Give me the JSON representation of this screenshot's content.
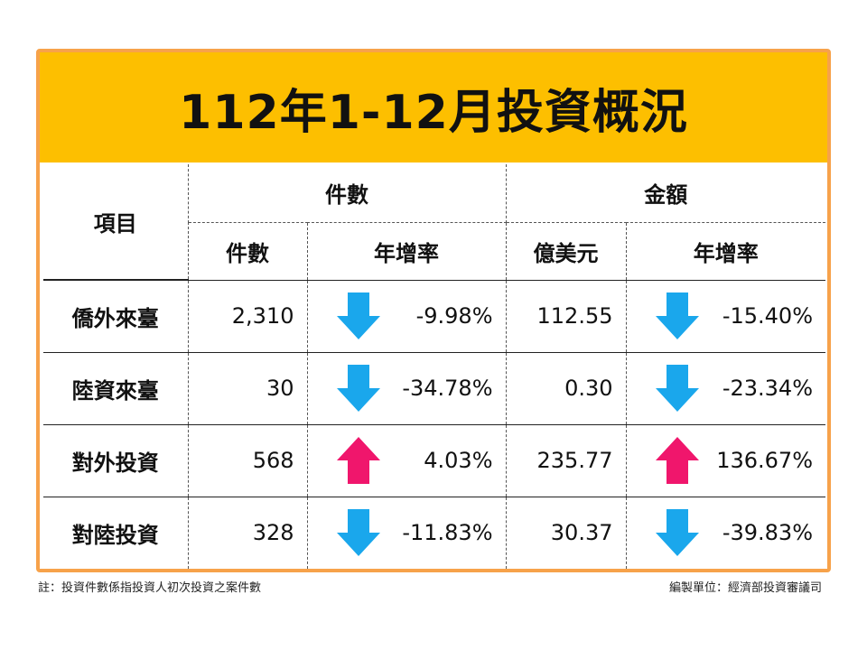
{
  "title": "112年1-12月投資概況",
  "headers": {
    "item": "項目",
    "group_count": "件數",
    "group_amount": "金額",
    "count": "件數",
    "count_rate": "年增率",
    "amount": "億美元",
    "amount_rate": "年增率"
  },
  "rows": [
    {
      "item": "僑外來臺",
      "count": "2,310",
      "count_rate": "-9.98%",
      "count_dir": "down",
      "amount": "112.55",
      "amount_rate": "-15.40%",
      "amount_dir": "down"
    },
    {
      "item": "陸資來臺",
      "count": "30",
      "count_rate": "-34.78%",
      "count_dir": "down",
      "amount": "0.30",
      "amount_rate": "-23.34%",
      "amount_dir": "down"
    },
    {
      "item": "對外投資",
      "count": "568",
      "count_rate": "4.03%",
      "count_dir": "up",
      "amount": "235.77",
      "amount_rate": "136.67%",
      "amount_dir": "up"
    },
    {
      "item": "對陸投資",
      "count": "328",
      "count_rate": "-11.83%",
      "count_dir": "down",
      "amount": "30.37",
      "amount_rate": "-39.83%",
      "amount_dir": "down"
    }
  ],
  "footnote": "註：投資件數係指投資人初次投資之案件數",
  "compiler": "編製單位：經濟部投資審議司",
  "colors": {
    "title_bg": "#fdbf00",
    "frame": "#f7a24a",
    "arrow_down": "#1aa7ec",
    "arrow_up": "#f0166c"
  }
}
